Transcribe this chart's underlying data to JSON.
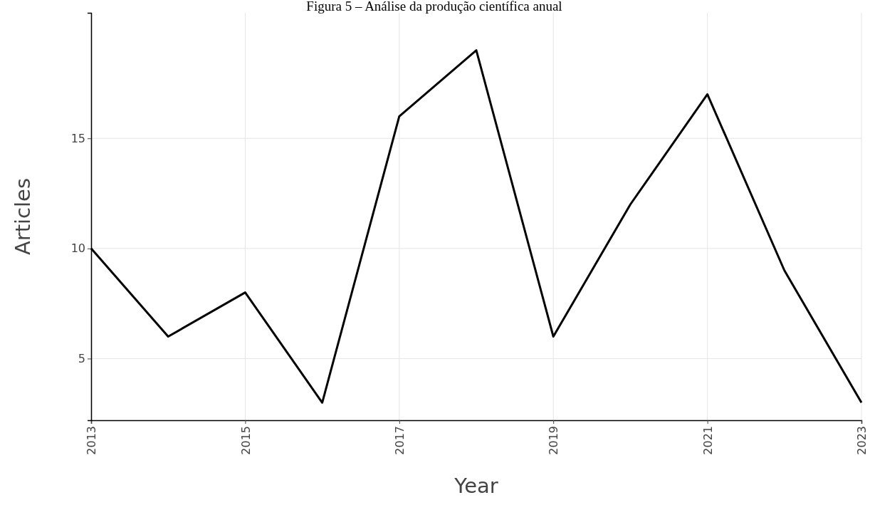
{
  "chart_data": {
    "type": "line",
    "title": "Figura 5 – Análise da produção científica anual",
    "xlabel": "Year",
    "ylabel": "Articles",
    "x": [
      2013,
      2014,
      2015,
      2016,
      2017,
      2018,
      2019,
      2020,
      2021,
      2022,
      2023
    ],
    "series": [
      {
        "color": "#000000",
        "values": [
          10,
          6,
          8,
          3,
          16,
          19,
          6,
          12,
          17,
          9,
          3
        ]
      }
    ],
    "xlim": [
      2013,
      2023
    ],
    "xticks": [
      2013,
      2015,
      2017,
      2019,
      2021,
      2023
    ],
    "ylim": [
      2.2,
      20.7
    ],
    "yticks": [
      5,
      10,
      15
    ],
    "grid": true,
    "marker": "none",
    "line_style": "solid"
  }
}
